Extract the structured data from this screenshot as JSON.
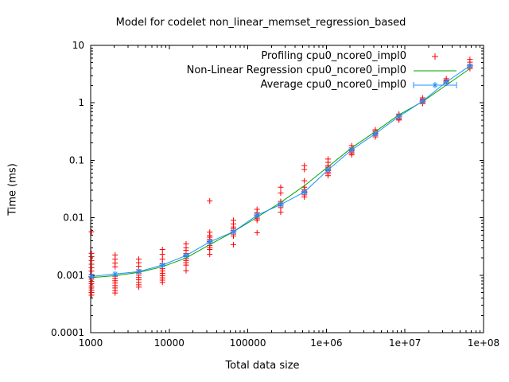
{
  "title": "Model for codelet non_linear_memset_regression_based",
  "background_color": "#ffffff",
  "text_color": "#000000",
  "legend": [
    {
      "label": "Profiling cpu0_ncore0_impl0",
      "marker": "plus",
      "color": "#ff0000"
    },
    {
      "label": "Non-Linear Regression cpu0_ncore0_impl0",
      "marker": "line",
      "color": "#00a400"
    },
    {
      "label": "Average cpu0_ncore0_impl0",
      "marker": "errorbar-star",
      "color": "#1e90ff"
    }
  ],
  "chart_data": {
    "type": "scatter",
    "title": "Model for codelet non_linear_memset_regression_based",
    "xlabel": "Total data size",
    "ylabel": "Time (ms)",
    "x_axis": {
      "scale": "log",
      "min": 1000,
      "max": 100000000,
      "ticks": [
        {
          "v": 1000,
          "label": "1000"
        },
        {
          "v": 10000,
          "label": "10000"
        },
        {
          "v": 100000,
          "label": "100000"
        },
        {
          "v": 1000000,
          "label": "1e+06"
        },
        {
          "v": 10000000,
          "label": "1e+07"
        },
        {
          "v": 100000000,
          "label": "1e+08"
        }
      ]
    },
    "y_axis": {
      "scale": "log",
      "min": 0.0001,
      "max": 10,
      "ticks": [
        {
          "v": 10,
          "label": "10"
        },
        {
          "v": 1,
          "label": "1"
        },
        {
          "v": 0.1,
          "label": "0.1"
        },
        {
          "v": 0.01,
          "label": "0.01"
        },
        {
          "v": 0.001,
          "label": "0.001"
        },
        {
          "v": 0.0001,
          "label": "0.0001"
        }
      ]
    },
    "grid": false,
    "legend_position": "top-right-inside",
    "series": [
      {
        "name": "Profiling cpu0_ncore0_impl0",
        "type": "scatter",
        "marker": "plus",
        "color": "#ff0000",
        "points": [
          [
            1024,
            0.0057
          ],
          [
            1024,
            0.0024
          ],
          [
            1024,
            0.0021
          ],
          [
            1024,
            0.0018
          ],
          [
            1024,
            0.00155
          ],
          [
            1024,
            0.00135
          ],
          [
            1024,
            0.00118
          ],
          [
            1024,
            0.00103
          ],
          [
            1024,
            0.00092
          ],
          [
            1024,
            0.00085
          ],
          [
            1024,
            0.00078
          ],
          [
            1024,
            0.00071
          ],
          [
            1024,
            0.00065
          ],
          [
            1024,
            0.0006
          ],
          [
            1024,
            0.00055
          ],
          [
            1024,
            0.0005
          ],
          [
            1024,
            0.00045
          ],
          [
            2048,
            0.00225
          ],
          [
            2048,
            0.0019
          ],
          [
            2048,
            0.00163
          ],
          [
            2048,
            0.0014
          ],
          [
            2048,
            0.00096
          ],
          [
            2048,
            0.00088
          ],
          [
            2048,
            0.0008
          ],
          [
            2048,
            0.00073
          ],
          [
            2048,
            0.00066
          ],
          [
            2048,
            0.0006
          ],
          [
            2048,
            0.00054
          ],
          [
            2048,
            0.00049
          ],
          [
            4096,
            0.0019
          ],
          [
            4096,
            0.00165
          ],
          [
            4096,
            0.00143
          ],
          [
            4096,
            0.00124
          ],
          [
            4096,
            0.00109
          ],
          [
            4096,
            0.001
          ],
          [
            4096,
            0.00091
          ],
          [
            4096,
            0.00083
          ],
          [
            4096,
            0.00075
          ],
          [
            4096,
            0.00068
          ],
          [
            4096,
            0.00062
          ],
          [
            8192,
            0.0028
          ],
          [
            8192,
            0.0023
          ],
          [
            8192,
            0.0019
          ],
          [
            8192,
            0.00158
          ],
          [
            8192,
            0.0013
          ],
          [
            8192,
            0.00119
          ],
          [
            8192,
            0.00108
          ],
          [
            8192,
            0.00098
          ],
          [
            8192,
            0.0009
          ],
          [
            8192,
            0.00082
          ],
          [
            8192,
            0.00075
          ],
          [
            16384,
            0.0035
          ],
          [
            16384,
            0.003
          ],
          [
            16384,
            0.0027
          ],
          [
            16384,
            0.0024
          ],
          [
            16384,
            0.00225
          ],
          [
            16384,
            0.0021
          ],
          [
            16384,
            0.00195
          ],
          [
            16384,
            0.0018
          ],
          [
            16384,
            0.00165
          ],
          [
            16384,
            0.0015
          ],
          [
            16384,
            0.0012
          ],
          [
            32768,
            0.0196
          ],
          [
            32768,
            0.0056
          ],
          [
            32768,
            0.0049
          ],
          [
            32768,
            0.0046
          ],
          [
            32768,
            0.0042
          ],
          [
            32768,
            0.0039
          ],
          [
            32768,
            0.0036
          ],
          [
            32768,
            0.0033
          ],
          [
            32768,
            0.003
          ],
          [
            32768,
            0.0028
          ],
          [
            32768,
            0.0023
          ],
          [
            65536,
            0.009
          ],
          [
            65536,
            0.0078
          ],
          [
            65536,
            0.0069
          ],
          [
            65536,
            0.0064
          ],
          [
            65536,
            0.006
          ],
          [
            65536,
            0.0056
          ],
          [
            65536,
            0.0052
          ],
          [
            65536,
            0.0048
          ],
          [
            65536,
            0.0034
          ],
          [
            131072,
            0.014
          ],
          [
            131072,
            0.0123
          ],
          [
            131072,
            0.0116
          ],
          [
            131072,
            0.0109
          ],
          [
            131072,
            0.0102
          ],
          [
            131072,
            0.0096
          ],
          [
            131072,
            0.009
          ],
          [
            131072,
            0.0055
          ],
          [
            262144,
            0.034
          ],
          [
            262144,
            0.027
          ],
          [
            262144,
            0.0192
          ],
          [
            262144,
            0.0181
          ],
          [
            262144,
            0.017
          ],
          [
            262144,
            0.016
          ],
          [
            262144,
            0.015
          ],
          [
            262144,
            0.0125
          ],
          [
            524288,
            0.081
          ],
          [
            524288,
            0.069
          ],
          [
            524288,
            0.044
          ],
          [
            524288,
            0.034
          ],
          [
            524288,
            0.031
          ],
          [
            524288,
            0.029
          ],
          [
            524288,
            0.027
          ],
          [
            524288,
            0.025
          ],
          [
            524288,
            0.023
          ],
          [
            1048576,
            0.105
          ],
          [
            1048576,
            0.092
          ],
          [
            1048576,
            0.081
          ],
          [
            1048576,
            0.076
          ],
          [
            1048576,
            0.071
          ],
          [
            1048576,
            0.066
          ],
          [
            1048576,
            0.062
          ],
          [
            1048576,
            0.058
          ],
          [
            1048576,
            0.054
          ],
          [
            2097152,
            0.18
          ],
          [
            2097152,
            0.164
          ],
          [
            2097152,
            0.155
          ],
          [
            2097152,
            0.147
          ],
          [
            2097152,
            0.139
          ],
          [
            2097152,
            0.131
          ],
          [
            2097152,
            0.124
          ],
          [
            4194304,
            0.34
          ],
          [
            4194304,
            0.32
          ],
          [
            4194304,
            0.3
          ],
          [
            4194304,
            0.285
          ],
          [
            4194304,
            0.27
          ],
          [
            4194304,
            0.255
          ],
          [
            8388608,
            0.64
          ],
          [
            8388608,
            0.61
          ],
          [
            8388608,
            0.58
          ],
          [
            8388608,
            0.55
          ],
          [
            8388608,
            0.52
          ],
          [
            8388608,
            0.5
          ],
          [
            16777216,
            1.22
          ],
          [
            16777216,
            1.16
          ],
          [
            16777216,
            1.11
          ],
          [
            16777216,
            1.06
          ],
          [
            16777216,
            1.01
          ],
          [
            16777216,
            0.97
          ],
          [
            33554432,
            2.63
          ],
          [
            33554432,
            2.5
          ],
          [
            33554432,
            2.4
          ],
          [
            33554432,
            2.3
          ],
          [
            33554432,
            2.2
          ],
          [
            67108864,
            5.7
          ],
          [
            67108864,
            5.1
          ],
          [
            67108864,
            4.65
          ],
          [
            67108864,
            4.4
          ],
          [
            67108864,
            4.2
          ],
          [
            67108864,
            3.95
          ]
        ]
      },
      {
        "name": "Non-Linear Regression cpu0_ncore0_impl0",
        "type": "line",
        "marker": "none",
        "color": "#00a400",
        "points": [
          [
            1024,
            0.00091
          ],
          [
            2048,
            0.00098
          ],
          [
            4096,
            0.00112
          ],
          [
            8192,
            0.0014
          ],
          [
            16384,
            0.002
          ],
          [
            32768,
            0.0034
          ],
          [
            65536,
            0.0057
          ],
          [
            131072,
            0.0102
          ],
          [
            262144,
            0.0185
          ],
          [
            524288,
            0.036
          ],
          [
            1048576,
            0.077
          ],
          [
            2097152,
            0.165
          ],
          [
            4194304,
            0.315
          ],
          [
            8388608,
            0.62
          ],
          [
            16777216,
            1.05
          ],
          [
            33554432,
            2.03
          ],
          [
            67108864,
            3.95
          ]
        ]
      },
      {
        "name": "Average cpu0_ncore0_impl0",
        "type": "line",
        "marker": "star",
        "color": "#1e90ff",
        "points": [
          [
            1024,
            0.00095
          ],
          [
            2048,
            0.00105
          ],
          [
            4096,
            0.00115
          ],
          [
            8192,
            0.0015
          ],
          [
            16384,
            0.0022
          ],
          [
            32768,
            0.0038
          ],
          [
            65536,
            0.0057
          ],
          [
            131072,
            0.011
          ],
          [
            262144,
            0.017
          ],
          [
            524288,
            0.028
          ],
          [
            1048576,
            0.068
          ],
          [
            2097152,
            0.152
          ],
          [
            4194304,
            0.29
          ],
          [
            8388608,
            0.58
          ],
          [
            16777216,
            1.07
          ],
          [
            33554432,
            2.3
          ],
          [
            67108864,
            4.4
          ]
        ]
      }
    ]
  }
}
